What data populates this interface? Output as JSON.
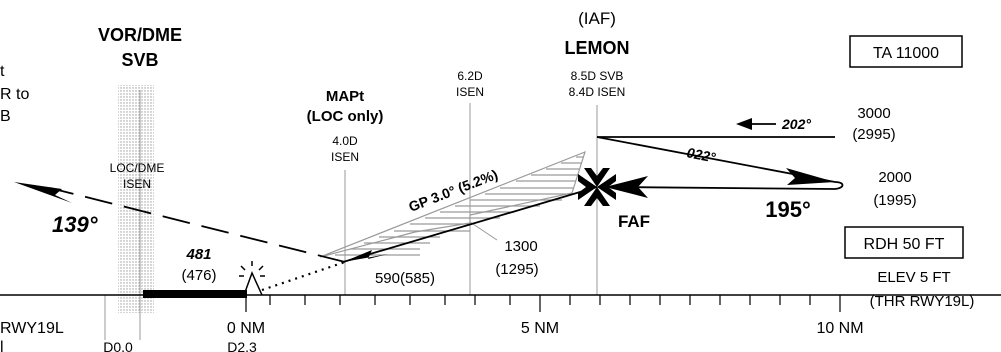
{
  "fixes": {
    "vor_name": "VOR/DME",
    "vor_id": "SVB",
    "iaf_label": "(IAF)",
    "faf_fix_name": "LEMON",
    "faf_dist_svb": "8.5D SVB",
    "faf_dist_isen": "8.4D ISEN",
    "step_dist_d": "6.2D",
    "step_dist_id": "ISEN",
    "mapt_label_1": "MAPt",
    "mapt_label_2": "(LOC only)",
    "mapt_dist_d": "4.0D",
    "mapt_dist_id": "ISEN",
    "locdme_label": "LOC/DME",
    "locdme_id": "ISEN",
    "faf_label": "FAF"
  },
  "left_note": {
    "line1": "t",
    "line2": "R to",
    "line3": "B"
  },
  "boxes": {
    "ta": "TA 11000",
    "rdh": "RDH 50 FT"
  },
  "elevation": {
    "elev": "ELEV 5 FT",
    "threshold": "(THR RWY19L)"
  },
  "altitudes": {
    "hold_alt": "3000",
    "hold_alt_amsl": "(2995)",
    "turn_alt": "2000",
    "turn_alt_amsl": "(1995)",
    "step_alt": "1300",
    "step_alt_amsl": "(1295)",
    "mda": "590(585)",
    "mapt_alt": "481",
    "mapt_alt_hat": "(476)"
  },
  "courses": {
    "outbound_hold": "202°",
    "outbound": "022°",
    "inbound": "195°",
    "missed": "139°"
  },
  "glidepath": {
    "label": "GP 3.0° (5.2%)"
  },
  "scale": {
    "left_partial": "RWY19L",
    "left_partial_2": "l",
    "zero": "0 NM",
    "five": "5 NM",
    "ten": "10 NM",
    "d00": "D0.0",
    "d23": "D2.3"
  }
}
